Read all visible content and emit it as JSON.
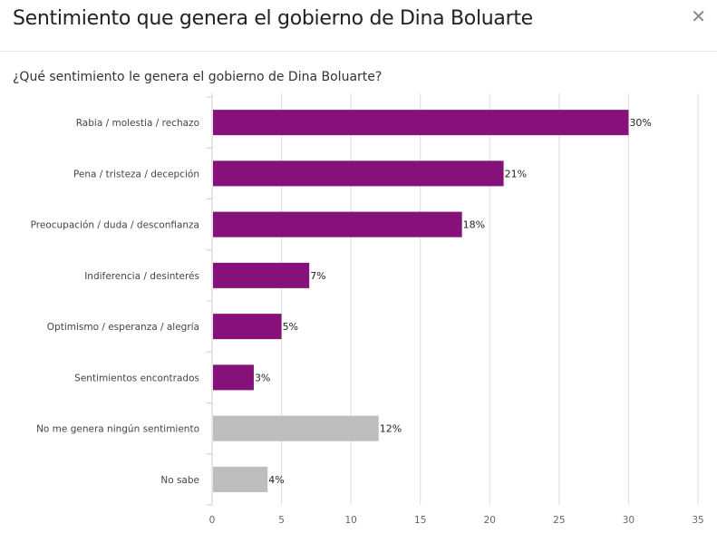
{
  "header": {
    "title": "Sentimiento que genera el gobierno de Dina Boluarte",
    "close_icon": "close-icon"
  },
  "chart_data": {
    "type": "bar",
    "orientation": "horizontal",
    "title": "¿Qué sentimiento le genera el gobierno de Dina Boluarte?",
    "categories": [
      "Rabia / molestia / rechazo",
      "Pena / tristeza / decepción",
      "Preocupación / duda / desconfianza",
      "Indiferencia / desinterés",
      "Optimismo / esperanza / alegría",
      "Sentimientos encontrados",
      "No me genera ningún sentimiento",
      "No sabe"
    ],
    "values": [
      30,
      21,
      18,
      7,
      5,
      3,
      12,
      4
    ],
    "labels": [
      "30%",
      "21%",
      "18%",
      "7%",
      "5%",
      "3%",
      "12%",
      "4%"
    ],
    "colors": [
      "#86117a",
      "#86117a",
      "#86117a",
      "#86117a",
      "#86117a",
      "#86117a",
      "#bdbdbd",
      "#bdbdbd"
    ],
    "xlim": [
      0,
      35
    ],
    "xticks": [
      0,
      5,
      10,
      15,
      20,
      25,
      30,
      35
    ],
    "xlabel": "",
    "ylabel": "",
    "grid": true
  }
}
